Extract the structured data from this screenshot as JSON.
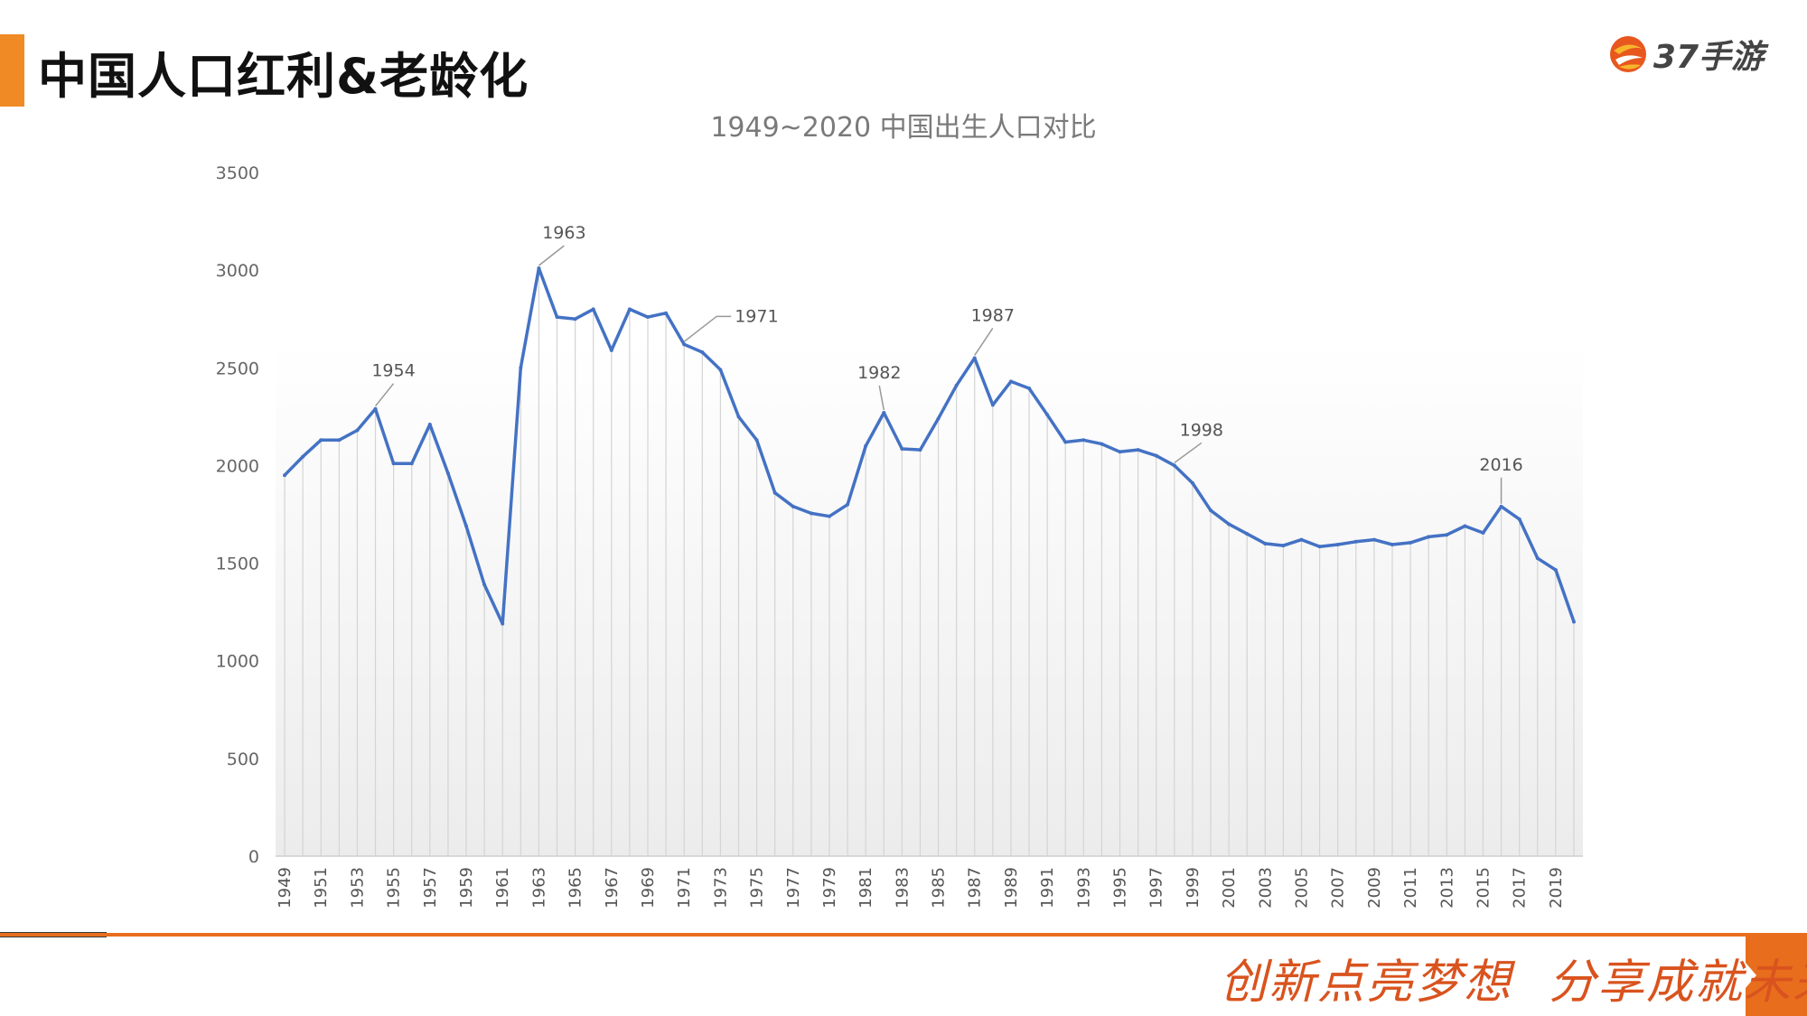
{
  "header": {
    "title": "中国人口红利&老龄化",
    "logo_text": "37手游"
  },
  "footer": {
    "slogan_left": "创新点亮梦想",
    "slogan_right": "分享成就未来"
  },
  "colors": {
    "accent": "#f08a24",
    "footer_orange": "#e86e1e",
    "series_line": "#4472c4",
    "slogan": "#d9531e"
  },
  "chart_data": {
    "type": "line",
    "title": "1949~2020 中国出生人口对比",
    "xlabel": "",
    "ylabel": "",
    "ylim": [
      0,
      3500
    ],
    "yticks": [
      0,
      500,
      1000,
      1500,
      2000,
      2500,
      3000,
      3500
    ],
    "x": [
      1949,
      1950,
      1951,
      1952,
      1953,
      1954,
      1955,
      1956,
      1957,
      1958,
      1959,
      1960,
      1961,
      1962,
      1963,
      1964,
      1965,
      1966,
      1967,
      1968,
      1969,
      1970,
      1971,
      1972,
      1973,
      1974,
      1975,
      1976,
      1977,
      1978,
      1979,
      1980,
      1981,
      1982,
      1983,
      1984,
      1985,
      1986,
      1987,
      1988,
      1989,
      1990,
      1991,
      1992,
      1993,
      1994,
      1995,
      1996,
      1997,
      1998,
      1999,
      2000,
      2001,
      2002,
      2003,
      2004,
      2005,
      2006,
      2007,
      2008,
      2009,
      2010,
      2011,
      2012,
      2013,
      2014,
      2015,
      2016,
      2017,
      2018,
      2019,
      2020
    ],
    "xtick_labels": [
      "1949",
      "1951",
      "1953",
      "1955",
      "1957",
      "1959",
      "1961",
      "1963",
      "1965",
      "1967",
      "1969",
      "1971",
      "1973",
      "1975",
      "1977",
      "1979",
      "1981",
      "1983",
      "1985",
      "1987",
      "1989",
      "1991",
      "1993",
      "1995",
      "1997",
      "1999",
      "2001",
      "2003",
      "2005",
      "2007",
      "2009",
      "2011",
      "2013",
      "2015",
      "2017",
      "2019"
    ],
    "series": [
      {
        "values": [
          1950,
          2045,
          2130,
          2130,
          2180,
          2290,
          2010,
          2010,
          2210,
          1960,
          1690,
          1390,
          1190,
          2500,
          3010,
          2760,
          2750,
          2800,
          2590,
          2800,
          2760,
          2780,
          2620,
          2580,
          2490,
          2250,
          2130,
          1860,
          1790,
          1755,
          1740,
          1800,
          2100,
          2270,
          2085,
          2080,
          2240,
          2410,
          2550,
          2310,
          2430,
          2395,
          2260,
          2120,
          2130,
          2110,
          2070,
          2080,
          2050,
          2000,
          1910,
          1770,
          1700,
          1650,
          1600,
          1590,
          1620,
          1585,
          1595,
          1610,
          1620,
          1595,
          1605,
          1635,
          1645,
          1690,
          1655,
          1790,
          1725,
          1525,
          1465,
          1200
        ]
      }
    ],
    "annotations": [
      {
        "label": "1954",
        "year": 1954
      },
      {
        "label": "1963",
        "year": 1963
      },
      {
        "label": "1971",
        "year": 1971
      },
      {
        "label": "1982",
        "year": 1982
      },
      {
        "label": "1987",
        "year": 1987
      },
      {
        "label": "1998",
        "year": 1998
      },
      {
        "label": "2016",
        "year": 2016
      }
    ],
    "grid": false,
    "legend": "none"
  }
}
